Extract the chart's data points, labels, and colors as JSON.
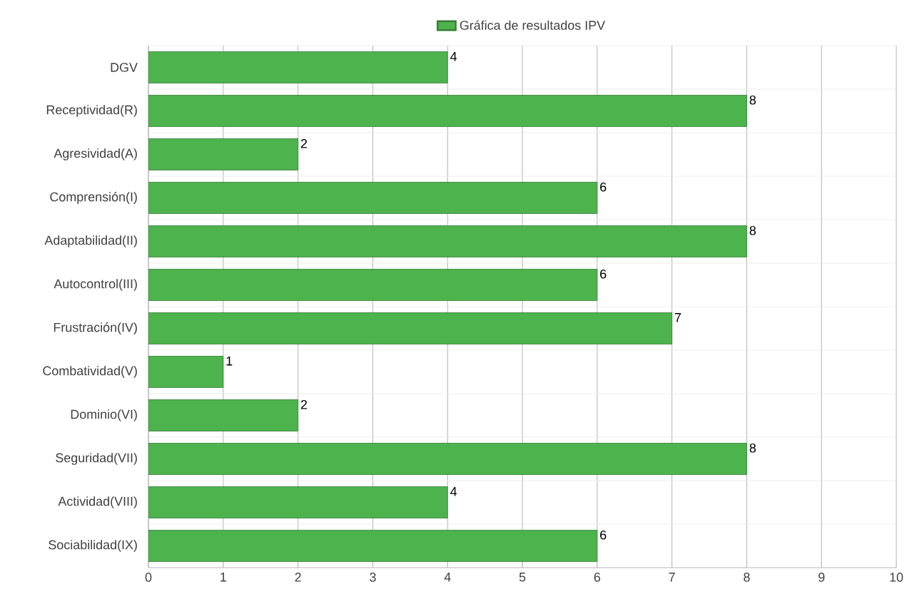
{
  "chart_data": {
    "type": "bar",
    "orientation": "horizontal",
    "categories": [
      "DGV",
      "Receptividad(R)",
      "Agresividad(A)",
      "Comprensión(I)",
      "Adaptabilidad(II)",
      "Autocontrol(III)",
      "Frustración(IV)",
      "Combatividad(V)",
      "Dominio(VI)",
      "Seguridad(VII)",
      "Actividad(VIII)",
      "Sociabilidad(IX)"
    ],
    "series": [
      {
        "name": "Gráfica de resultados IPV",
        "color": "#4db34d",
        "values": [
          4,
          8,
          2,
          6,
          8,
          6,
          7,
          1,
          2,
          8,
          4,
          6
        ]
      }
    ],
    "xlim": [
      0,
      10
    ],
    "xticks": [
      0,
      1,
      2,
      3,
      4,
      5,
      6,
      7,
      8,
      9,
      10
    ],
    "grid": true,
    "legend": "top",
    "data_labels": true
  }
}
